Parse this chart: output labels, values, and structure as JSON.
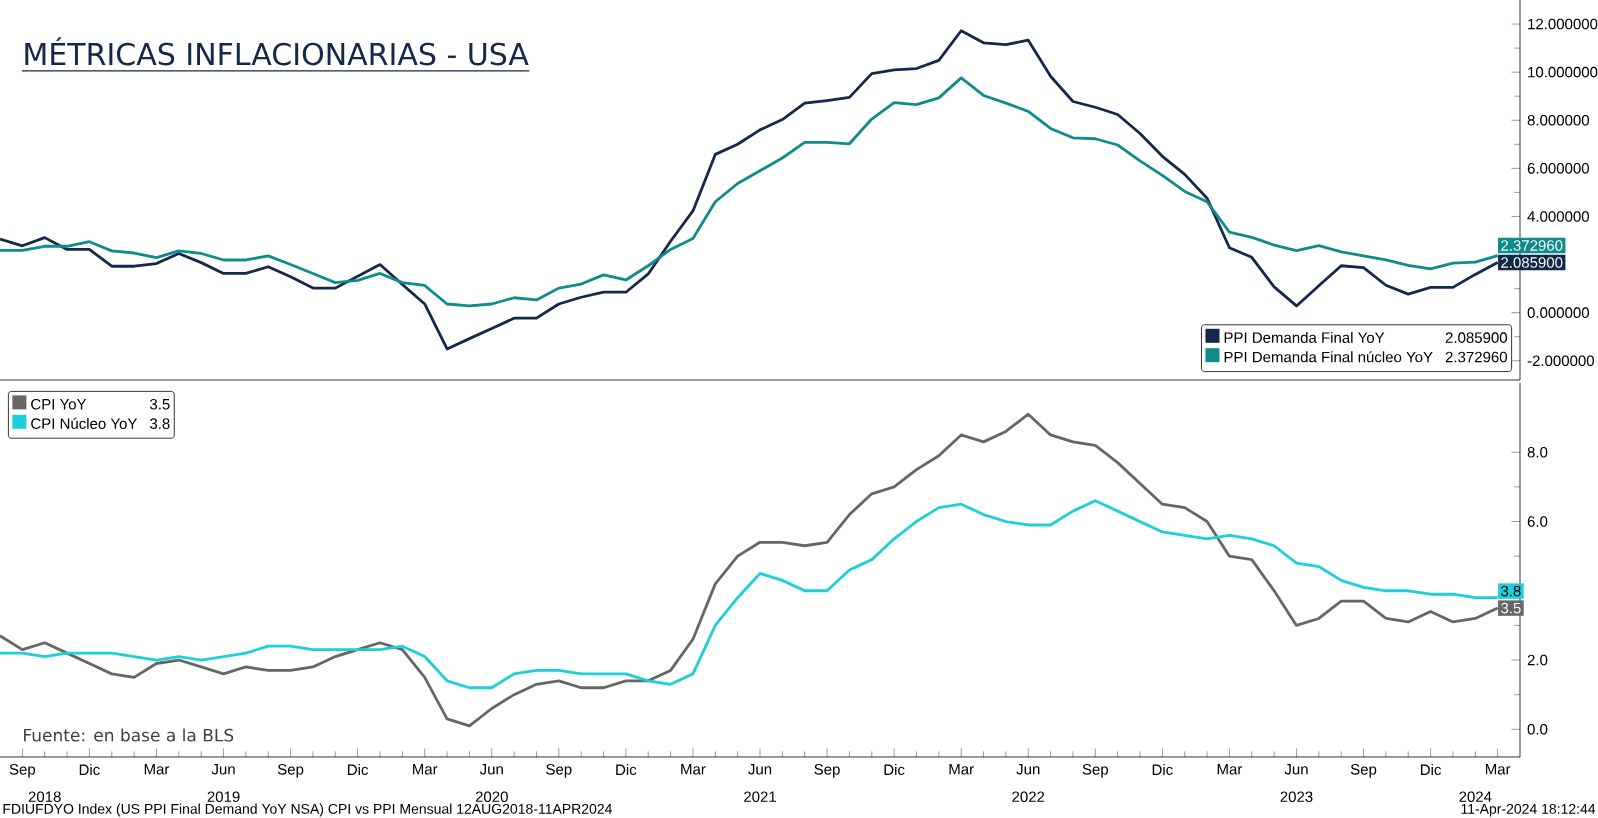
{
  "chart_data": [
    {
      "type": "line",
      "title": "MÉTRICAS INFLACIONARIAS - USA",
      "legend": "bottom right",
      "tick_labels": "y",
      "x": [
        "2018-08",
        "2018-09",
        "2018-10",
        "2018-11",
        "2018-12",
        "2019-01",
        "2019-02",
        "2019-03",
        "2019-04",
        "2019-05",
        "2019-06",
        "2019-07",
        "2019-08",
        "2019-09",
        "2019-10",
        "2019-11",
        "2019-12",
        "2020-01",
        "2020-02",
        "2020-03",
        "2020-04",
        "2020-05",
        "2020-06",
        "2020-07",
        "2020-08",
        "2020-09",
        "2020-10",
        "2020-11",
        "2020-12",
        "2021-01",
        "2021-02",
        "2021-03",
        "2021-04",
        "2021-05",
        "2021-06",
        "2021-07",
        "2021-08",
        "2021-09",
        "2021-10",
        "2021-11",
        "2021-12",
        "2022-01",
        "2022-02",
        "2022-03",
        "2022-04",
        "2022-05",
        "2022-06",
        "2022-07",
        "2022-08",
        "2022-09",
        "2022-10",
        "2022-11",
        "2022-12",
        "2023-01",
        "2023-02",
        "2023-03",
        "2023-04",
        "2023-05",
        "2023-06",
        "2023-07",
        "2023-08",
        "2023-09",
        "2023-10",
        "2023-11",
        "2023-12",
        "2024-01",
        "2024-02",
        "2024-03"
      ],
      "xlim": [
        "2018-08",
        "2024-04"
      ],
      "ylim": [
        -2.8,
        13
      ],
      "annotations": [
        {
          "text": "2.085900",
          "x": "2024-03",
          "y": 2.0859
        },
        {
          "text": "2.372960",
          "x": "2024-03",
          "y": 2.37296
        }
      ],
      "yticks": [
        {
          "value": -2,
          "label": "-2.000000"
        },
        {
          "value": 0,
          "label": "0.000000"
        },
        {
          "value": 2,
          "label": null
        },
        {
          "value": 4,
          "label": "4.000000"
        },
        {
          "value": 6,
          "label": "6.000000"
        },
        {
          "value": 8,
          "label": "8.000000"
        },
        {
          "value": 10,
          "label": "10.000000"
        },
        {
          "value": 12,
          "label": "12.000000"
        }
      ],
      "series": [
        {
          "name": "PPI Demanda Final YoY",
          "color": "#14284a",
          "values": [
            3.06,
            2.78,
            3.12,
            2.63,
            2.63,
            1.93,
            1.93,
            2.04,
            2.46,
            2.08,
            1.63,
            1.63,
            1.91,
            1.49,
            1.02,
            1.02,
            1.51,
            2.0,
            1.17,
            0.36,
            -1.51,
            -1.08,
            -0.66,
            -0.23,
            -0.23,
            0.36,
            0.64,
            0.85,
            0.85,
            1.61,
            2.97,
            4.23,
            6.58,
            7.0,
            7.6,
            8.03,
            8.71,
            8.82,
            8.95,
            9.94,
            10.09,
            10.15,
            10.49,
            11.72,
            11.22,
            11.14,
            11.33,
            9.83,
            8.78,
            8.54,
            8.24,
            7.45,
            6.5,
            5.75,
            4.76,
            2.7,
            2.3,
            1.07,
            0.28,
            1.12,
            1.95,
            1.87,
            1.14,
            0.77,
            1.05,
            1.05,
            1.59,
            2.0859
          ]
        },
        {
          "name": "PPI Demanda Final núcleo YoY",
          "color": "#0e8c8c",
          "values": [
            2.59,
            2.59,
            2.76,
            2.76,
            2.95,
            2.57,
            2.48,
            2.29,
            2.57,
            2.46,
            2.19,
            2.19,
            2.36,
            2.0,
            1.63,
            1.25,
            1.34,
            1.63,
            1.25,
            1.13,
            0.36,
            0.28,
            0.36,
            0.62,
            0.53,
            1.02,
            1.19,
            1.57,
            1.36,
            1.95,
            2.63,
            3.08,
            4.61,
            5.37,
            5.9,
            6.43,
            7.08,
            7.08,
            7.02,
            8.05,
            8.73,
            8.65,
            8.93,
            9.76,
            9.03,
            8.71,
            8.37,
            7.66,
            7.27,
            7.23,
            6.97,
            6.31,
            5.71,
            5.04,
            4.61,
            3.35,
            3.13,
            2.81,
            2.58,
            2.79,
            2.53,
            2.36,
            2.19,
            1.97,
            1.82,
            2.06,
            2.1,
            2.37296
          ]
        }
      ]
    },
    {
      "type": "line",
      "legend": "top left",
      "x": [
        "2018-08",
        "2018-09",
        "2018-10",
        "2018-11",
        "2018-12",
        "2019-01",
        "2019-02",
        "2019-03",
        "2019-04",
        "2019-05",
        "2019-06",
        "2019-07",
        "2019-08",
        "2019-09",
        "2019-10",
        "2019-11",
        "2019-12",
        "2020-01",
        "2020-02",
        "2020-03",
        "2020-04",
        "2020-05",
        "2020-06",
        "2020-07",
        "2020-08",
        "2020-09",
        "2020-10",
        "2020-11",
        "2020-12",
        "2021-01",
        "2021-02",
        "2021-03",
        "2021-04",
        "2021-05",
        "2021-06",
        "2021-07",
        "2021-08",
        "2021-09",
        "2021-10",
        "2021-11",
        "2021-12",
        "2022-01",
        "2022-02",
        "2022-03",
        "2022-04",
        "2022-05",
        "2022-06",
        "2022-07",
        "2022-08",
        "2022-09",
        "2022-10",
        "2022-11",
        "2022-12",
        "2023-01",
        "2023-02",
        "2023-03",
        "2023-04",
        "2023-05",
        "2023-06",
        "2023-07",
        "2023-08",
        "2023-09",
        "2023-10",
        "2023-11",
        "2023-12",
        "2024-01",
        "2024-02",
        "2024-03"
      ],
      "xlim": [
        "2018-08",
        "2024-04"
      ],
      "ylim": [
        -0.8,
        10
      ],
      "xticks": [
        {
          "value": "2018-09",
          "label": "Sep"
        },
        {
          "value": "2018-12",
          "label": "Dic"
        },
        {
          "value": "2019-03",
          "label": "Mar"
        },
        {
          "value": "2019-06",
          "label": "Jun"
        },
        {
          "value": "2019-09",
          "label": "Sep"
        },
        {
          "value": "2019-12",
          "label": "Dic"
        },
        {
          "value": "2020-03",
          "label": "Mar"
        },
        {
          "value": "2020-06",
          "label": "Jun"
        },
        {
          "value": "2020-09",
          "label": "Sep"
        },
        {
          "value": "2020-12",
          "label": "Dic"
        },
        {
          "value": "2021-03",
          "label": "Mar"
        },
        {
          "value": "2021-06",
          "label": "Jun"
        },
        {
          "value": "2021-09",
          "label": "Sep"
        },
        {
          "value": "2021-12",
          "label": "Dic"
        },
        {
          "value": "2022-03",
          "label": "Mar"
        },
        {
          "value": "2022-06",
          "label": "Jun"
        },
        {
          "value": "2022-09",
          "label": "Sep"
        },
        {
          "value": "2022-12",
          "label": "Dic"
        },
        {
          "value": "2023-03",
          "label": "Mar"
        },
        {
          "value": "2023-06",
          "label": "Jun"
        },
        {
          "value": "2023-09",
          "label": "Sep"
        },
        {
          "value": "2023-12",
          "label": "Dic"
        },
        {
          "value": "2024-03",
          "label": "Mar"
        }
      ],
      "x2lim": [
        "2018-08",
        "2024-04"
      ],
      "x2ticks": [
        {
          "value": "2018-10",
          "label": "2018"
        },
        {
          "value": "2019-06",
          "label": "2019"
        },
        {
          "value": "2020-06",
          "label": "2020"
        },
        {
          "value": "2021-06",
          "label": "2021"
        },
        {
          "value": "2022-06",
          "label": "2022"
        },
        {
          "value": "2023-06",
          "label": "2023"
        },
        {
          "value": "2024-02",
          "label": "2024"
        }
      ],
      "yticks": [
        {
          "value": 0,
          "label": "0.0"
        },
        {
          "value": 2,
          "label": "2.0"
        },
        {
          "value": 4,
          "label": null
        },
        {
          "value": 6,
          "label": "6.0"
        },
        {
          "value": 8,
          "label": "8.0"
        }
      ],
      "annotations": [
        "Fuente: en base a la BLS",
        "FDIUFDYO Index (US PPI Final Demand YoY NSA) CPI vs PPI  Mensual 12AUG2018-11APR2024",
        "11-Apr-2024 18:12:44",
        {
          "text": "3.5",
          "x": "2024-03",
          "y": 3.5
        },
        {
          "text": "3.8",
          "x": "2024-03",
          "y": 3.8
        }
      ],
      "series": [
        {
          "name": "CPI YoY",
          "color": "#666666",
          "values": [
            2.7,
            2.3,
            2.5,
            2.2,
            1.9,
            1.6,
            1.5,
            1.9,
            2.0,
            1.8,
            1.6,
            1.8,
            1.7,
            1.7,
            1.8,
            2.1,
            2.3,
            2.5,
            2.3,
            1.5,
            0.3,
            0.1,
            0.6,
            1.0,
            1.3,
            1.4,
            1.2,
            1.2,
            1.4,
            1.4,
            1.7,
            2.6,
            4.2,
            5.0,
            5.4,
            5.4,
            5.3,
            5.4,
            6.2,
            6.8,
            7.0,
            7.5,
            7.9,
            8.5,
            8.3,
            8.6,
            9.1,
            8.5,
            8.3,
            8.2,
            7.7,
            7.1,
            6.5,
            6.4,
            6.0,
            5.0,
            4.9,
            4.0,
            3.0,
            3.2,
            3.7,
            3.7,
            3.2,
            3.1,
            3.4,
            3.1,
            3.2,
            3.5
          ]
        },
        {
          "name": "CPI Núcleo YoY",
          "color": "#1ccfd8",
          "values": [
            2.2,
            2.2,
            2.1,
            2.2,
            2.2,
            2.2,
            2.1,
            2.0,
            2.1,
            2.0,
            2.1,
            2.2,
            2.4,
            2.4,
            2.3,
            2.3,
            2.3,
            2.3,
            2.4,
            2.1,
            1.4,
            1.2,
            1.2,
            1.6,
            1.7,
            1.7,
            1.6,
            1.6,
            1.6,
            1.4,
            1.3,
            1.6,
            3.0,
            3.8,
            4.5,
            4.3,
            4.0,
            4.0,
            4.6,
            4.9,
            5.5,
            6.0,
            6.4,
            6.5,
            6.2,
            6.0,
            5.9,
            5.9,
            6.3,
            6.6,
            6.3,
            6.0,
            5.7,
            5.6,
            5.5,
            5.6,
            5.5,
            5.3,
            4.8,
            4.7,
            4.3,
            4.1,
            4.0,
            4.0,
            3.9,
            3.9,
            3.8,
            3.8
          ]
        }
      ]
    }
  ]
}
